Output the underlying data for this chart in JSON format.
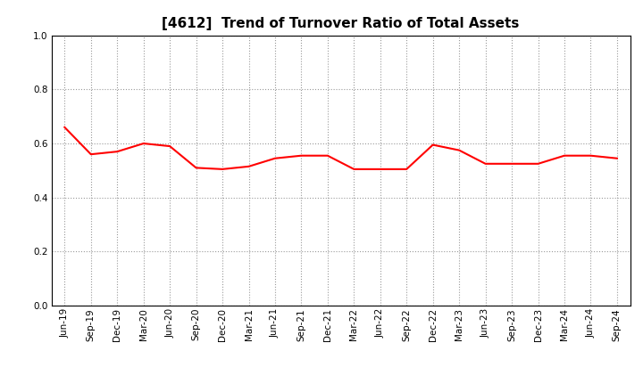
{
  "title": "[4612]  Trend of Turnover Ratio of Total Assets",
  "labels": [
    "Jun-19",
    "Sep-19",
    "Dec-19",
    "Mar-20",
    "Jun-20",
    "Sep-20",
    "Dec-20",
    "Mar-21",
    "Jun-21",
    "Sep-21",
    "Dec-21",
    "Mar-22",
    "Jun-22",
    "Sep-22",
    "Dec-22",
    "Mar-23",
    "Jun-23",
    "Sep-23",
    "Dec-23",
    "Mar-24",
    "Jun-24",
    "Sep-24"
  ],
  "values": [
    0.66,
    0.56,
    0.57,
    0.6,
    0.59,
    0.51,
    0.505,
    0.515,
    0.545,
    0.555,
    0.555,
    0.505,
    0.505,
    0.505,
    0.595,
    0.575,
    0.525,
    0.525,
    0.525,
    0.555,
    0.555,
    0.545
  ],
  "line_color": "#FF0000",
  "line_width": 1.5,
  "ylim": [
    0.0,
    1.0
  ],
  "yticks": [
    0.0,
    0.2,
    0.4,
    0.6,
    0.8,
    1.0
  ],
  "background_color": "#ffffff",
  "grid_color": "#999999",
  "title_fontsize": 11,
  "tick_fontsize": 7.5
}
